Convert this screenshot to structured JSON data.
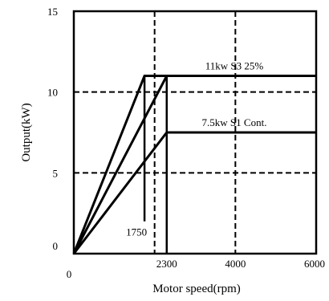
{
  "chart_data": {
    "type": "line",
    "title": "",
    "xlabel": "Motor speed(rpm)",
    "ylabel": "Output(kW)",
    "xlim": [
      0,
      6000
    ],
    "ylim": [
      0,
      15
    ],
    "x_ticks": [
      "0",
      "2300",
      "4000",
      "6000"
    ],
    "y_ticks": [
      "0",
      "5",
      "10",
      "15"
    ],
    "grid": {
      "dashed": true,
      "vertical_at_x": [
        2000,
        4000
      ],
      "horizontal_at_y": [
        5,
        10
      ]
    },
    "series": [
      {
        "label": "11kw S3 25%",
        "points": [
          [
            0,
            0
          ],
          [
            1750,
            11
          ],
          [
            6000,
            11
          ]
        ]
      },
      {
        "points": [
          [
            0,
            0
          ],
          [
            2300,
            11
          ],
          [
            6000,
            11
          ]
        ]
      },
      {
        "label": "7.5kw S1 Cont.",
        "points": [
          [
            0,
            0
          ],
          [
            2300,
            7.5
          ],
          [
            6000,
            7.5
          ]
        ]
      }
    ],
    "markers": [
      {
        "label": "1750",
        "x": 1750,
        "y_from": 2,
        "y_to": 11
      },
      {
        "x": 2300,
        "y_from": 0,
        "y_to": 11
      }
    ]
  }
}
